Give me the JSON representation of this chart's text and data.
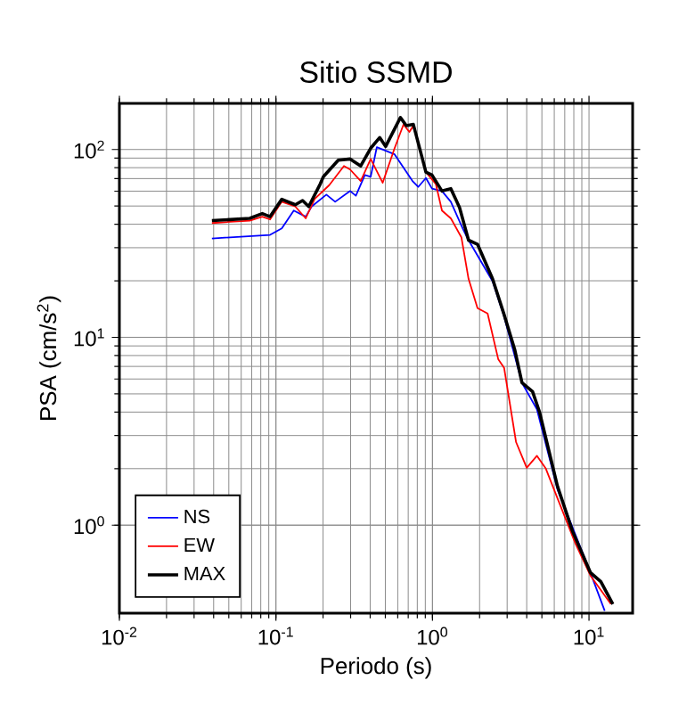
{
  "chart_data": {
    "type": "line",
    "title": "Sitio SSMD",
    "xlabel": "Periodo (s)",
    "ylabel": "PSA (cm/s$^{2}$)",
    "log": "xy",
    "grid": true,
    "legend": "bottom left",
    "line_style": "solid",
    "marker": "none",
    "xlim": [
      0.01,
      19
    ],
    "ylim": [
      0.34,
      176
    ],
    "xticks": [
      {
        "value": 0.01,
        "label": "10$^{-2}$"
      },
      {
        "value": 0.1,
        "label": "10$^{-1}$"
      },
      {
        "value": 1,
        "label": "10$^{0}$"
      },
      {
        "value": 10,
        "label": "10$^{1}$"
      }
    ],
    "yticks": [
      {
        "value": 1,
        "label": "10$^{0}$"
      },
      {
        "value": 10,
        "label": "10$^{1}$"
      },
      {
        "value": 100,
        "label": "10$^{2}$"
      }
    ],
    "series": [
      {
        "name": "NS",
        "color": "#0000ff",
        "x": [
          0.039,
          0.0917,
          0.109,
          0.13,
          0.155,
          0.169,
          0.21,
          0.239,
          0.298,
          0.324,
          0.37,
          0.403,
          0.441,
          0.573,
          0.745,
          0.811,
          0.908,
          0.993,
          1.15,
          1.31,
          1.56,
          1.7,
          2.42,
          2.87,
          3.73,
          4.65,
          6.29,
          10.2,
          12.6
        ],
        "values": [
          33.6,
          35.1,
          38,
          47.3,
          43.9,
          49.7,
          57.5,
          52.7,
          60.1,
          56.7,
          73.1,
          71.6,
          102.8,
          94.2,
          68,
          63.2,
          70.5,
          61.9,
          60.1,
          52.7,
          38,
          32.9,
          19.9,
          12.9,
          5.73,
          4.13,
          1.55,
          0.56,
          0.35
        ]
      },
      {
        "name": "EW",
        "color": "#ff0000",
        "x": [
          0.039,
          0.068,
          0.0818,
          0.0917,
          0.109,
          0.133,
          0.155,
          0.177,
          0.219,
          0.272,
          0.298,
          0.348,
          0.403,
          0.481,
          0.573,
          0.653,
          0.712,
          0.755,
          0.908,
          1.05,
          1.15,
          1.31,
          1.53,
          1.7,
          1.94,
          2.25,
          2.63,
          2.87,
          3.42,
          4.0,
          4.65,
          5.3,
          6.29,
          8.18,
          10.2,
          13.8
        ],
        "values": [
          40.6,
          41.8,
          43.9,
          42.4,
          52.7,
          49.7,
          43,
          54.6,
          64.6,
          81.7,
          78.2,
          68,
          89,
          66.5,
          101.6,
          135.8,
          124,
          134,
          75.8,
          65.6,
          47.3,
          43,
          34.1,
          20.5,
          14.3,
          13.4,
          7.66,
          6.87,
          2.77,
          2.02,
          2.34,
          2.0,
          1.39,
          0.8,
          0.54,
          0.38
        ]
      },
      {
        "name": "MAX",
        "color": "#000000",
        "x": [
          0.039,
          0.068,
          0.0818,
          0.0917,
          0.109,
          0.133,
          0.148,
          0.162,
          0.192,
          0.201,
          0.25,
          0.298,
          0.348,
          0.403,
          0.46,
          0.502,
          0.624,
          0.681,
          0.755,
          0.908,
          0.993,
          1.15,
          1.31,
          1.49,
          1.7,
          1.94,
          2.42,
          2.87,
          3.36,
          3.73,
          4.36,
          4.84,
          6.29,
          7.84,
          10.2,
          11.9,
          14.2
        ],
        "values": [
          41.8,
          43,
          45.6,
          43.9,
          54.3,
          50.8,
          53.5,
          49.7,
          65.6,
          71.6,
          87.7,
          89,
          81.7,
          101.6,
          115.8,
          103.8,
          148,
          134,
          136,
          75.8,
          73.1,
          60.1,
          61.9,
          49,
          32.9,
          31.3,
          20.5,
          13.2,
          8.55,
          5.73,
          5.14,
          3.98,
          1.61,
          0.93,
          0.56,
          0.5,
          0.38
        ]
      }
    ]
  }
}
